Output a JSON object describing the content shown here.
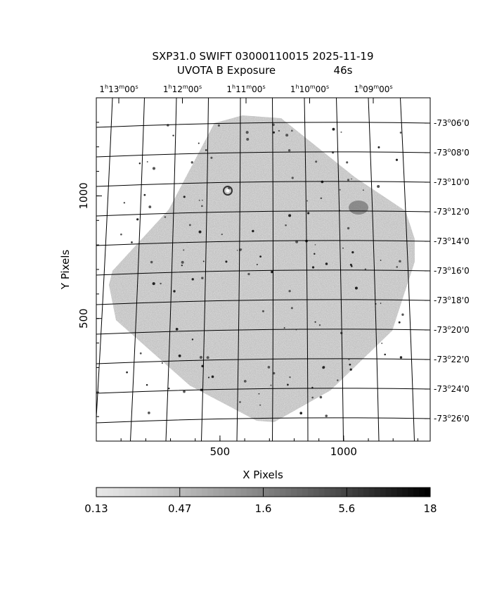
{
  "title_line1": "SXP31.0 SWIFT 03000110015 2025-11-19",
  "title_line2_label": "UVOTA B Exposure",
  "title_line2_value": "46s",
  "chart_data": {
    "type": "heatmap",
    "xlabel": "X Pixels",
    "ylabel": "Y Pixels",
    "x_ticks": [
      500,
      1000
    ],
    "y_ticks": [
      500,
      1000
    ],
    "xlim": [
      0,
      1350
    ],
    "ylim": [
      0,
      1400
    ],
    "ra_ticks": [
      {
        "h": "1",
        "m": "13",
        "s": "00"
      },
      {
        "h": "1",
        "m": "12",
        "s": "00"
      },
      {
        "h": "1",
        "m": "11",
        "s": "00"
      },
      {
        "h": "1",
        "m": "10",
        "s": "00"
      },
      {
        "h": "1",
        "m": "09",
        "s": "00"
      }
    ],
    "dec_ticks": [
      {
        "d": "-73",
        "m": "06"
      },
      {
        "d": "-73",
        "m": "08"
      },
      {
        "d": "-73",
        "m": "10"
      },
      {
        "d": "-73",
        "m": "12"
      },
      {
        "d": "-73",
        "m": "14"
      },
      {
        "d": "-73",
        "m": "16"
      },
      {
        "d": "-73",
        "m": "18"
      },
      {
        "d": "-73",
        "m": "20"
      },
      {
        "d": "-73",
        "m": "22"
      },
      {
        "d": "-73",
        "m": "24"
      },
      {
        "d": "-73",
        "m": "26"
      }
    ],
    "colorbar": {
      "labels": [
        "0.13",
        "0.47",
        "1.6",
        "5.6",
        "18"
      ],
      "scale": "log",
      "colormap": "grayscale-inverted"
    }
  }
}
